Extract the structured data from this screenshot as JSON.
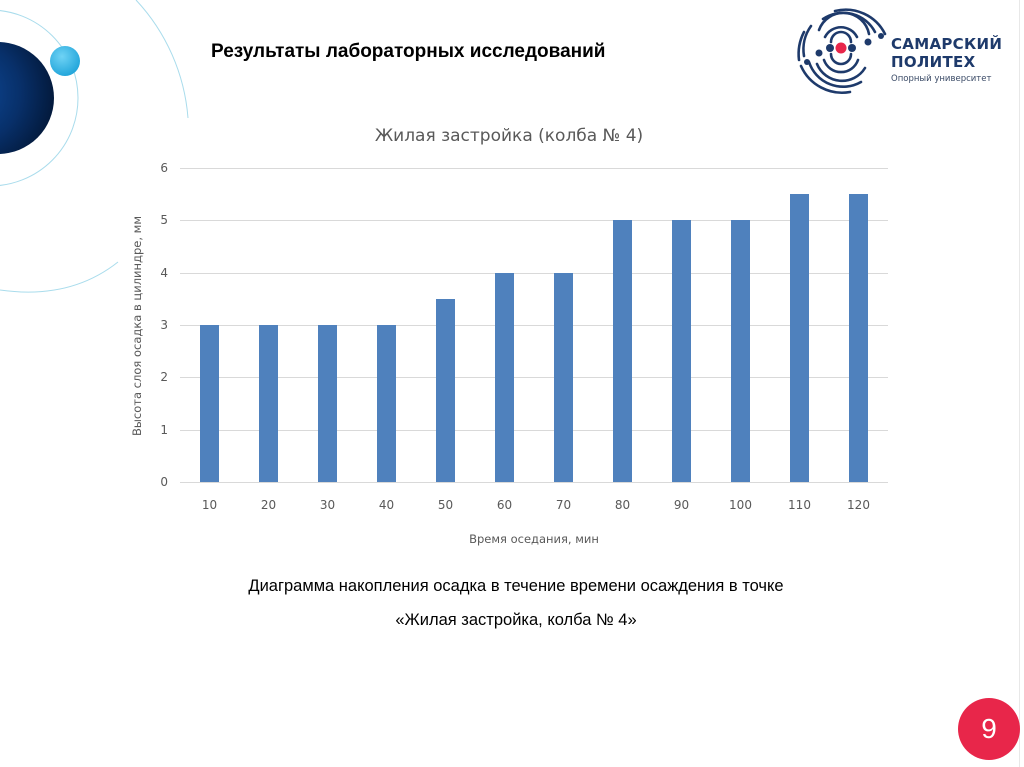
{
  "slide": {
    "title": "Результаты лабораторных исследований",
    "page_number": "9",
    "caption_line1": "Диаграмма накопления осадка в течение времени осаждения в точке",
    "caption_line2": "«Жилая застройка, колба № 4»"
  },
  "logo": {
    "line1": "САМАРСКИЙ",
    "line2": "ПОЛИТЕХ",
    "line3": "Опорный университет"
  },
  "colors": {
    "bar": "#4f81bd",
    "badge": "#e8264a",
    "logo_blue": "#1e3a6b",
    "logo_red": "#e8264a",
    "deco_dark": "#0a2d5e",
    "deco_light": "#3fb8e8"
  },
  "chart_data": {
    "type": "bar",
    "title": "Жилая застройка (колба № 4)",
    "xlabel": "Время оседания, мин",
    "ylabel": "Высота слоя осадка в цилиндре, мм",
    "categories": [
      "10",
      "20",
      "30",
      "40",
      "50",
      "60",
      "70",
      "80",
      "90",
      "100",
      "110",
      "120"
    ],
    "values": [
      3,
      3,
      3,
      3,
      3.5,
      4,
      4,
      5,
      5,
      5,
      5.5,
      5.5
    ],
    "ylim": [
      0,
      6
    ],
    "yticks": [
      "0",
      "1",
      "2",
      "3",
      "4",
      "5",
      "6"
    ],
    "grid": true,
    "legend": null
  }
}
